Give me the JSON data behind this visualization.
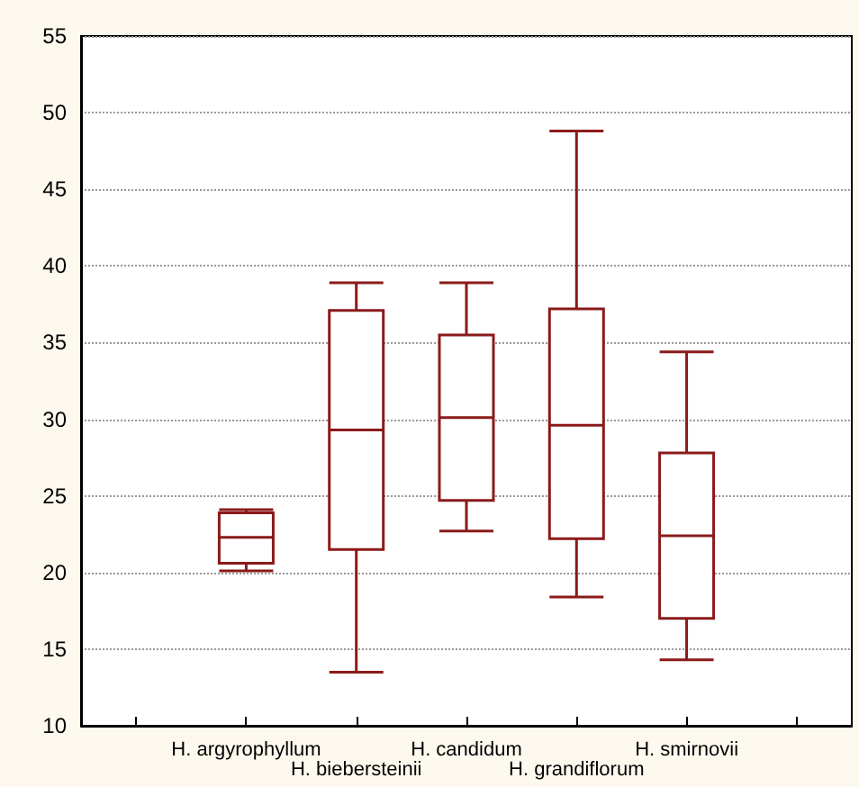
{
  "chart_data": {
    "type": "box",
    "categories": [
      null,
      "H. argyrophyllum",
      "H. biebersteinii",
      "H. candidum",
      "H. grandiflorum",
      "H. smirnovii",
      null
    ],
    "series": [
      {
        "color": "#8b1a1a",
        "boxes": [
          null,
          {
            "low": 20.1,
            "q1": 20.6,
            "median": 22.3,
            "q3": 23.9,
            "high": 24.1
          },
          {
            "low": 13.5,
            "q1": 21.5,
            "median": 29.3,
            "q3": 37.1,
            "high": 38.9
          },
          {
            "low": 22.7,
            "q1": 24.7,
            "median": 30.1,
            "q3": 35.5,
            "high": 38.9
          },
          {
            "low": 18.4,
            "q1": 22.2,
            "median": 29.6,
            "q3": 37.2,
            "high": 48.8
          },
          {
            "low": 14.3,
            "q1": 17.0,
            "median": 22.4,
            "q3": 27.8,
            "high": 34.4
          },
          null
        ]
      }
    ],
    "ylim": [
      10,
      55
    ],
    "yticks": [
      10,
      15,
      20,
      25,
      30,
      35,
      40,
      45,
      50,
      55
    ],
    "grid": "y"
  }
}
